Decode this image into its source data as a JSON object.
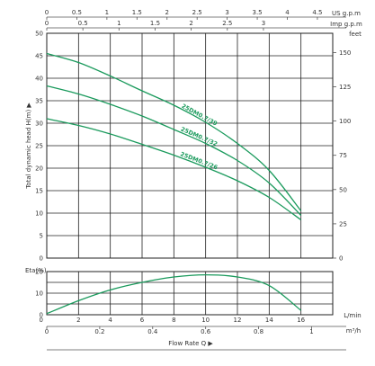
{
  "chart_data": [
    {
      "type": "line",
      "panel": "head",
      "ylabel": "Total dynamic head H(m)",
      "ylim": [
        0,
        50
      ],
      "y_ticks": [
        0,
        5,
        10,
        15,
        20,
        25,
        30,
        35,
        40,
        45,
        50
      ],
      "right_axis": {
        "label": "feet",
        "ticks": [
          0,
          25,
          50,
          75,
          100,
          125,
          150
        ]
      },
      "top_axis_us": {
        "label": "US g.p.m",
        "ticks": [
          "0",
          "0.5",
          "1",
          "1.5",
          "2",
          "2.5",
          "3",
          "3.5",
          "4",
          "4.5"
        ]
      },
      "top_axis_imp": {
        "label": "Imp g.p.m",
        "ticks": [
          "0",
          "0.5",
          "1",
          "1.5",
          "2",
          "2.5",
          "3"
        ]
      },
      "x_unit": "L/min",
      "xlim": [
        0,
        18
      ],
      "series": [
        {
          "name": "25DM0.7/39",
          "x": [
            0,
            2,
            4,
            6,
            8,
            10,
            12,
            14,
            16
          ],
          "y": [
            45.5,
            43.5,
            40.5,
            37.2,
            34.0,
            30.2,
            25.5,
            19.5,
            10.5
          ]
        },
        {
          "name": "25DM0.7/32",
          "x": [
            0,
            2,
            4,
            6,
            8,
            10,
            12,
            14,
            16
          ],
          "y": [
            38.3,
            36.5,
            34.2,
            31.6,
            28.6,
            25.5,
            21.7,
            16.7,
            9.5
          ]
        },
        {
          "name": "25DM0.7/26",
          "x": [
            0,
            2,
            4,
            6,
            8,
            10,
            12,
            14,
            16
          ],
          "y": [
            31.0,
            29.5,
            27.6,
            25.3,
            22.9,
            20.2,
            17.2,
            13.5,
            8.5
          ]
        }
      ]
    },
    {
      "type": "line",
      "panel": "efficiency",
      "ylabel": "Eta(%)",
      "ylim": [
        0,
        20
      ],
      "y_ticks": [
        0,
        10,
        20
      ],
      "x_ticks": [
        0,
        2,
        4,
        6,
        8,
        10,
        12,
        14,
        16
      ],
      "x_unit": "L/min",
      "xlim": [
        0,
        18
      ],
      "m3h_ticks": [
        "0",
        "0.2",
        "0.4",
        "0.6",
        "0.8",
        "1"
      ],
      "m3h_unit": "m³/h",
      "xlabel": "Flow Rate Q",
      "series": [
        {
          "name": "",
          "x": [
            0,
            2,
            4,
            6,
            8,
            10,
            12,
            14,
            16
          ],
          "y": [
            0.5,
            6.5,
            11.5,
            15.0,
            17.5,
            18.5,
            17.5,
            13.5,
            2.0
          ]
        }
      ]
    }
  ],
  "colors": {
    "curve": "#1a9a5c",
    "grid": "#222222",
    "axis": "#555555"
  }
}
